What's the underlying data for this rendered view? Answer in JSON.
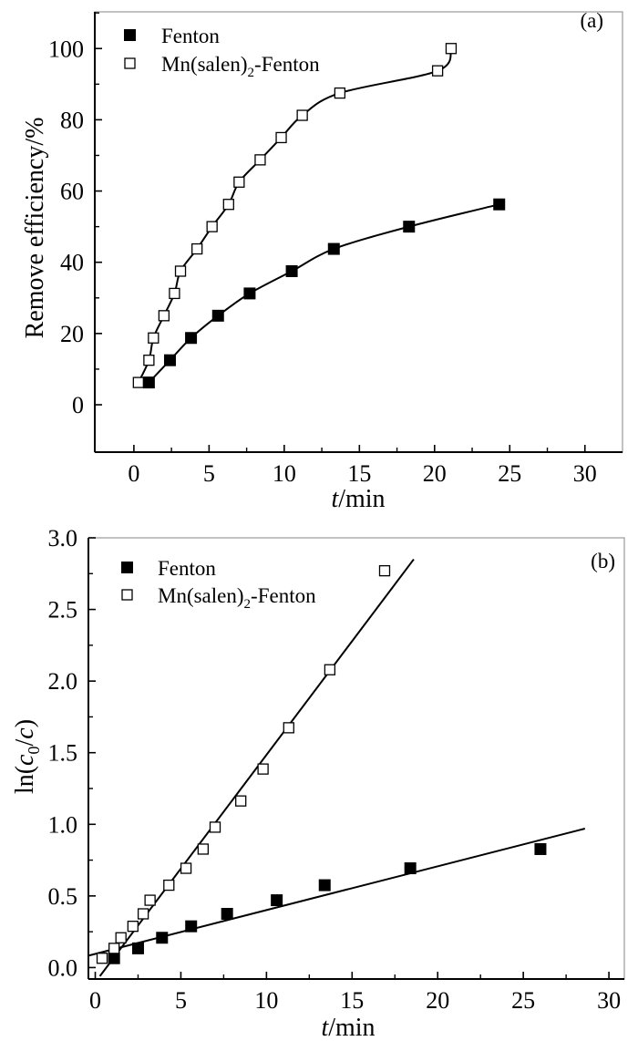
{
  "chart_data": [
    {
      "type": "scatter",
      "panel_label": "(a)",
      "xlabel": {
        "italic": "t",
        "rest": "/min"
      },
      "ylabel": "Remove efficiency/%",
      "xlim": [
        -2.6,
        32.5
      ],
      "ylim": [
        -13.3,
        110.3
      ],
      "xticks": [
        0,
        5,
        10,
        15,
        20,
        25,
        30
      ],
      "yticks": [
        0,
        20,
        40,
        60,
        80,
        100
      ],
      "grid": false,
      "legend_position": "top-left",
      "series": [
        {
          "name": "Fenton",
          "legend": {
            "main": "Fenton",
            "sub": "",
            "after": ""
          },
          "marker": "filled-square",
          "fit": "smooth-curve",
          "x": [
            1.0,
            2.4,
            3.8,
            5.6,
            7.7,
            10.5,
            13.3,
            18.3,
            24.3
          ],
          "y": [
            6.25,
            12.5,
            18.75,
            25.0,
            31.25,
            37.5,
            43.75,
            50.0,
            56.25
          ]
        },
        {
          "name": "Mn(salen)2-Fenton",
          "legend": {
            "main": "Mn(salen)",
            "sub": "2",
            "after": "-Fenton"
          },
          "marker": "open-square",
          "fit": "smooth-curve",
          "x": [
            0.3,
            1.0,
            1.3,
            2.0,
            2.7,
            3.1,
            4.2,
            5.2,
            6.3,
            7.0,
            8.4,
            9.8,
            11.2,
            13.7,
            20.2,
            21.1
          ],
          "y": [
            6.25,
            12.5,
            18.75,
            25.0,
            31.25,
            37.5,
            43.75,
            50.0,
            56.25,
            62.5,
            68.75,
            75.0,
            81.25,
            87.5,
            93.75,
            100.0
          ]
        }
      ]
    },
    {
      "type": "scatter",
      "panel_label": "(b)",
      "xlabel": {
        "italic": "t",
        "rest": "/min"
      },
      "ylabel": {
        "pre": "ln(",
        "c1": "c",
        "sub": "0",
        "mid": "/",
        "c2": "c",
        "post": ")"
      },
      "xlim": [
        -0.4,
        30.9
      ],
      "ylim": [
        -0.08,
        3.0
      ],
      "xticks": [
        0,
        5,
        10,
        15,
        20,
        25,
        30
      ],
      "yticks": [
        0.0,
        0.5,
        1.0,
        1.5,
        2.0,
        2.5,
        3.0
      ],
      "grid": false,
      "legend_position": "top-left",
      "series": [
        {
          "name": "Fenton",
          "legend": {
            "main": "Fenton",
            "sub": "",
            "after": ""
          },
          "marker": "filled-square",
          "fit": "linear",
          "fit_line": [
            [
              -0.4,
              0.083
            ],
            [
              28.6,
              0.97
            ]
          ],
          "x": [
            1.1,
            2.5,
            3.9,
            5.6,
            7.7,
            10.6,
            13.4,
            18.4,
            26.0
          ],
          "y": [
            0.065,
            0.134,
            0.208,
            0.288,
            0.375,
            0.47,
            0.575,
            0.693,
            0.827
          ]
        },
        {
          "name": "Mn(salen)2-Fenton",
          "legend": {
            "main": "Mn(salen)",
            "sub": "2",
            "after": "-Fenton"
          },
          "marker": "open-square",
          "fit": "linear",
          "fit_line": [
            [
              0.27,
              -0.06
            ],
            [
              18.6,
              2.85
            ]
          ],
          "x": [
            0.4,
            1.1,
            1.5,
            2.2,
            2.8,
            3.2,
            4.3,
            5.3,
            6.3,
            7.0,
            8.5,
            9.8,
            11.3,
            13.7,
            16.9
          ],
          "y": [
            0.065,
            0.134,
            0.208,
            0.288,
            0.375,
            0.47,
            0.575,
            0.693,
            0.827,
            0.98,
            1.163,
            1.386,
            1.674,
            2.079,
            2.77
          ]
        }
      ]
    }
  ]
}
